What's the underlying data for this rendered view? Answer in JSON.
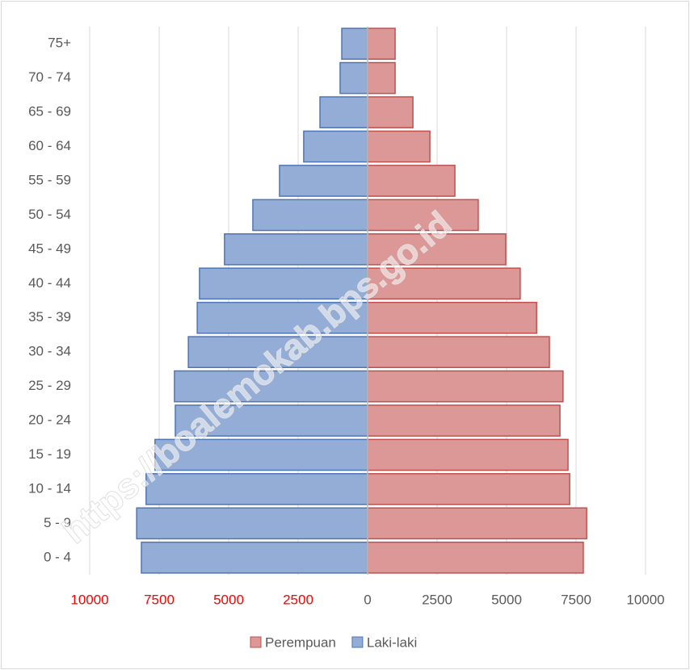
{
  "chart_data": {
    "type": "pyramid",
    "categories": [
      "0 - 4",
      "5 - 9",
      "10 - 14",
      "15 - 19",
      "20 - 24",
      "25 - 29",
      "30 - 34",
      "35 - 39",
      "40 - 44",
      "45 - 49",
      "50 - 54",
      "55 - 59",
      "60 - 64",
      "65 - 69",
      "70 - 74",
      "75+"
    ],
    "series": [
      {
        "name": "Perempuan",
        "color": "#dc9897",
        "stroke": "#c0504d",
        "values": [
          7760,
          7880,
          7270,
          7210,
          6920,
          7030,
          6540,
          6080,
          5490,
          4970,
          3980,
          3140,
          2240,
          1630,
          990,
          990
        ]
      },
      {
        "name": "Laki-laki",
        "color": "#94add6",
        "stroke": "#4f76b5",
        "values": [
          -8140,
          -8310,
          -7970,
          -7650,
          -6920,
          -6950,
          -6450,
          -6130,
          -6050,
          -5150,
          -4130,
          -3170,
          -2300,
          -1715,
          -990,
          -930
        ]
      }
    ],
    "xlim": [
      -10000,
      10000
    ],
    "xticks": [
      {
        "value": -10000,
        "label": "10000"
      },
      {
        "value": -7500,
        "label": "7500"
      },
      {
        "value": -5000,
        "label": "5000"
      },
      {
        "value": -2500,
        "label": "2500"
      },
      0,
      2500,
      5000,
      7500,
      10000
    ],
    "negative_tick_label_color": "#ff0000",
    "grid": true,
    "legend": "bottom",
    "watermark": "https://boalemokab.bps.go.id"
  }
}
